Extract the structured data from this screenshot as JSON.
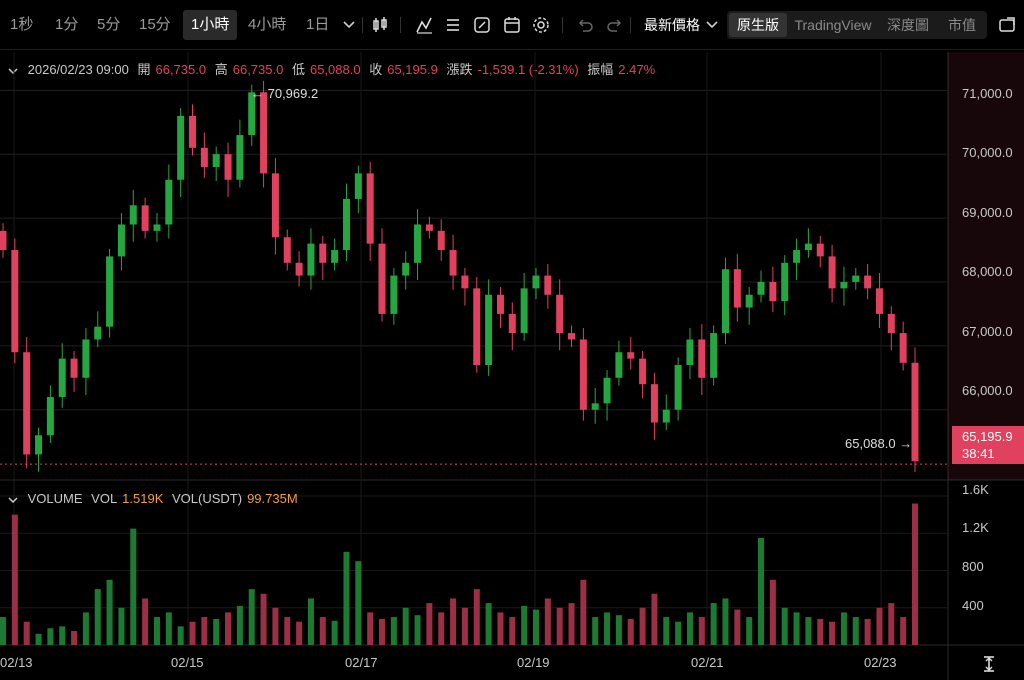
{
  "toolbar": {
    "intervals": [
      "1秒",
      "1分",
      "5分",
      "15分",
      "1小時",
      "4小時",
      "1日"
    ],
    "active_interval": "1小時",
    "price_type": "最新價格",
    "views": [
      "原生版",
      "TradingView",
      "深度圖",
      "市值"
    ],
    "active_view": "原生版",
    "icons": [
      "chevron-down-icon",
      "candle-type-icon",
      "indicator-icon",
      "list-icon",
      "drawing-icon",
      "calendar-icon",
      "settings-icon",
      "undo-icon",
      "redo-icon",
      "fullscreen-icon"
    ]
  },
  "ohlc": {
    "datetime": "2026/02/23 09:00",
    "open_label": "開",
    "open": "66,735.0",
    "high_label": "高",
    "high": "66,735.0",
    "low_label": "低",
    "low": "65,088.0",
    "close_label": "收",
    "close": "65,195.9",
    "change_label": "漲跌",
    "change": "-1,539.1 (-2.31%)",
    "amplitude_label": "振幅",
    "amplitude": "2.47%"
  },
  "volume_header": {
    "title": "VOLUME",
    "vol_label": "VOL",
    "vol_value": "1.519K",
    "vol_usdt_label": "VOL(USDT)",
    "vol_usdt_value": "99.735M"
  },
  "price_badge": {
    "price": "65,195.9",
    "countdown": "38:41"
  },
  "annotations": {
    "high_marker": "← 70,969.2",
    "low_marker": "65,088.0 →"
  },
  "colors": {
    "up": "#26a641",
    "down": "#e0415f",
    "background": "#000000"
  },
  "chart_data": {
    "type": "candlestick",
    "price_axis": {
      "ticks": [
        "71,000.0",
        "70,000.0",
        "69,000.0",
        "68,000.0",
        "67,000.0",
        "66,000.0"
      ],
      "range": [
        64900,
        71600
      ]
    },
    "volume_axis": {
      "ticks": [
        "1.6K",
        "1.2K",
        "800",
        "400"
      ],
      "range": [
        0,
        1600
      ]
    },
    "x_ticks": [
      "02/13",
      "02/15",
      "02/17",
      "02/19",
      "02/21",
      "02/23"
    ],
    "series": [
      {
        "name": "price",
        "values": [
          68500,
          66900,
          65300,
          65600,
          66200,
          66800,
          66500,
          67100,
          67300,
          68400,
          68900,
          69200,
          68800,
          68900,
          69600,
          70600,
          70100,
          69800,
          70000,
          69600,
          70300,
          70969,
          69700,
          68700,
          68300,
          68100,
          68600,
          68300,
          68500,
          69300,
          69700,
          68600,
          67500,
          68100,
          68300,
          68900,
          68800,
          68500,
          68100,
          67900,
          66700,
          67800,
          67500,
          67200,
          67900,
          68100,
          67800,
          67200,
          67100,
          66000,
          66100,
          66500,
          66900,
          66800,
          66400,
          65800,
          66000,
          66700,
          67100,
          66500,
          67200,
          68200,
          67600,
          67800,
          68000,
          67700,
          68300,
          68500,
          68600,
          68400,
          67900,
          68000,
          68100,
          67900,
          67500,
          67200,
          66735,
          65196
        ]
      }
    ],
    "volume": [
      300,
      1400,
      250,
      120,
      180,
      200,
      150,
      350,
      600,
      700,
      400,
      1250,
      500,
      300,
      350,
      200,
      250,
      300,
      280,
      350,
      420,
      600,
      550,
      400,
      300,
      250,
      500,
      300,
      260,
      1000,
      900,
      350,
      280,
      300,
      400,
      320,
      450,
      350,
      500,
      400,
      600,
      450,
      350,
      300,
      420,
      380,
      500,
      400,
      450,
      700,
      300,
      350,
      320,
      280,
      400,
      550,
      300,
      250,
      350,
      300,
      450,
      500,
      380,
      300,
      1150,
      700,
      400,
      350,
      300,
      280,
      250,
      350,
      300,
      280,
      400,
      450,
      300,
      1519
    ]
  }
}
